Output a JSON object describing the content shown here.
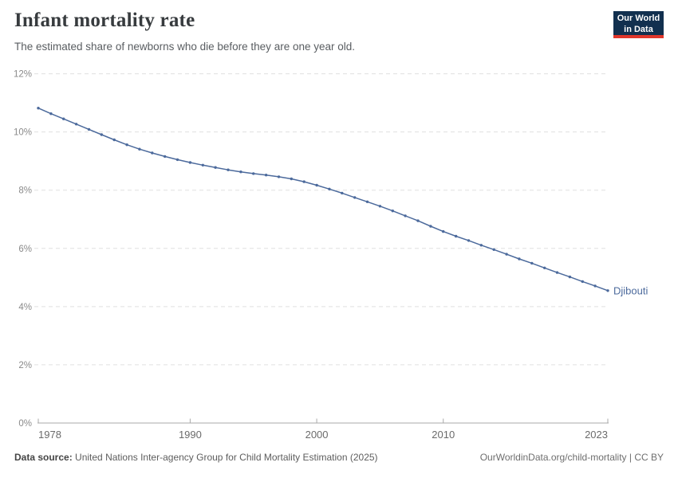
{
  "header": {
    "title": "Infant mortality rate",
    "subtitle": "The estimated share of newborns who die before they are one year old."
  },
  "logo": {
    "line1": "Our World",
    "line2": "in Data",
    "bg_color": "#12304f",
    "accent_color": "#e0362b"
  },
  "chart_data": {
    "type": "line",
    "title": "Infant mortality rate",
    "xlabel": "",
    "ylabel": "",
    "unit": "%",
    "xlim": [
      1978,
      2023
    ],
    "ylim": [
      0,
      12
    ],
    "xticks": [
      1978,
      1990,
      2000,
      2010,
      2023
    ],
    "yticks": [
      0,
      2,
      4,
      6,
      8,
      10,
      12
    ],
    "ytick_suffix": "%",
    "grid": "horizontal-dashed",
    "grid_color": "#e0e0e0",
    "axis_color": "#a9a9a9",
    "ytick_label_color": "#8a8a8a",
    "xtick_label_color": "#6b6b6b",
    "legend_position": "end-of-line-label",
    "series": [
      {
        "name": "Djibouti",
        "color": "#4c6a9c",
        "marker": "dot",
        "x": [
          1978,
          1979,
          1980,
          1981,
          1982,
          1983,
          1984,
          1985,
          1986,
          1987,
          1988,
          1989,
          1990,
          1991,
          1992,
          1993,
          1994,
          1995,
          1996,
          1997,
          1998,
          1999,
          2000,
          2001,
          2002,
          2003,
          2004,
          2005,
          2006,
          2007,
          2008,
          2009,
          2010,
          2011,
          2012,
          2013,
          2014,
          2015,
          2016,
          2017,
          2018,
          2019,
          2020,
          2021,
          2022,
          2023
        ],
        "values": [
          10.82,
          10.63,
          10.45,
          10.27,
          10.09,
          9.91,
          9.73,
          9.56,
          9.41,
          9.28,
          9.16,
          9.05,
          8.95,
          8.86,
          8.78,
          8.7,
          8.63,
          8.57,
          8.52,
          8.46,
          8.39,
          8.29,
          8.17,
          8.04,
          7.9,
          7.75,
          7.6,
          7.45,
          7.29,
          7.12,
          6.95,
          6.76,
          6.58,
          6.42,
          6.27,
          6.11,
          5.96,
          5.8,
          5.64,
          5.49,
          5.33,
          5.17,
          5.02,
          4.86,
          4.71,
          4.55
        ]
      }
    ]
  },
  "footer": {
    "data_source_label": "Data source:",
    "data_source_text": "United Nations Inter-agency Group for Child Mortality Estimation (2025)",
    "link_and_license": "OurWorldinData.org/child-mortality | CC BY"
  }
}
